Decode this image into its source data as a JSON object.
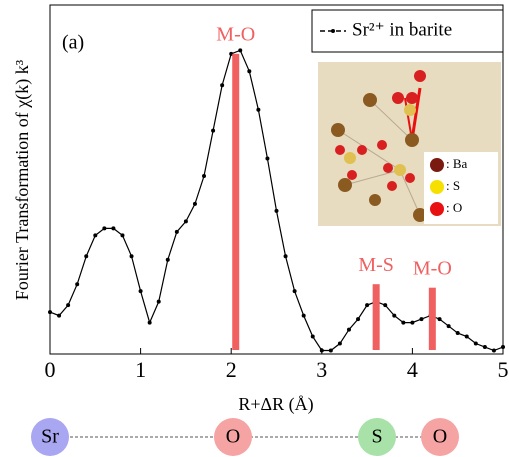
{
  "chart_data": {
    "type": "line",
    "annotation": "(a)",
    "x_label": "R+ΔR (Å)",
    "y_label": "Fourier Transformation of  χ(k) k³",
    "xlim": [
      0,
      5
    ],
    "xticks": [
      0,
      1,
      2,
      3,
      4,
      5
    ],
    "ylim": [
      0,
      1
    ],
    "x": [
      0,
      0.1,
      0.2,
      0.3,
      0.4,
      0.5,
      0.6,
      0.7,
      0.8,
      0.9,
      1.0,
      1.1,
      1.2,
      1.3,
      1.4,
      1.5,
      1.6,
      1.7,
      1.8,
      1.9,
      2.0,
      2.1,
      2.2,
      2.3,
      2.4,
      2.5,
      2.6,
      2.7,
      2.8,
      2.9,
      3.0,
      3.1,
      3.2,
      3.3,
      3.4,
      3.5,
      3.6,
      3.7,
      3.8,
      3.9,
      4.0,
      4.1,
      4.2,
      4.3,
      4.4,
      4.5,
      4.6,
      4.7,
      4.8,
      4.9,
      5.0
    ],
    "series": [
      {
        "name": "Sr²⁺ in barite",
        "color": "#000000",
        "values": [
          0.12,
          0.11,
          0.14,
          0.2,
          0.28,
          0.34,
          0.36,
          0.36,
          0.34,
          0.28,
          0.18,
          0.09,
          0.15,
          0.27,
          0.35,
          0.38,
          0.43,
          0.51,
          0.64,
          0.77,
          0.86,
          0.87,
          0.81,
          0.7,
          0.56,
          0.41,
          0.28,
          0.18,
          0.11,
          0.05,
          0.01,
          0.01,
          0.03,
          0.07,
          0.1,
          0.14,
          0.15,
          0.14,
          0.11,
          0.09,
          0.09,
          0.1,
          0.11,
          0.1,
          0.08,
          0.06,
          0.05,
          0.03,
          0.02,
          0.01,
          0.02
        ]
      }
    ],
    "markers": [
      {
        "label": "M-O",
        "x": 2.05,
        "top": 0.86,
        "color": "#f06060"
      },
      {
        "label": "M-S",
        "x": 3.6,
        "top": 0.2,
        "color": "#f06060"
      },
      {
        "label": "M-O",
        "x": 4.22,
        "top": 0.19,
        "color": "#f06060"
      }
    ],
    "legend_position": "upper right",
    "inset_legend": [
      {
        "label": ": Ba",
        "color": "#7a1a10"
      },
      {
        "label": ": S",
        "color": "#f5e000"
      },
      {
        "label": ": O",
        "color": "#e81010"
      }
    ],
    "atom_chain": [
      {
        "label": "Sr",
        "color": "#a9a6f2"
      },
      {
        "label": "O",
        "color": "#f5a3a3"
      },
      {
        "label": "S",
        "color": "#a8e2a8"
      },
      {
        "label": "O",
        "color": "#f5a3a3"
      }
    ]
  }
}
